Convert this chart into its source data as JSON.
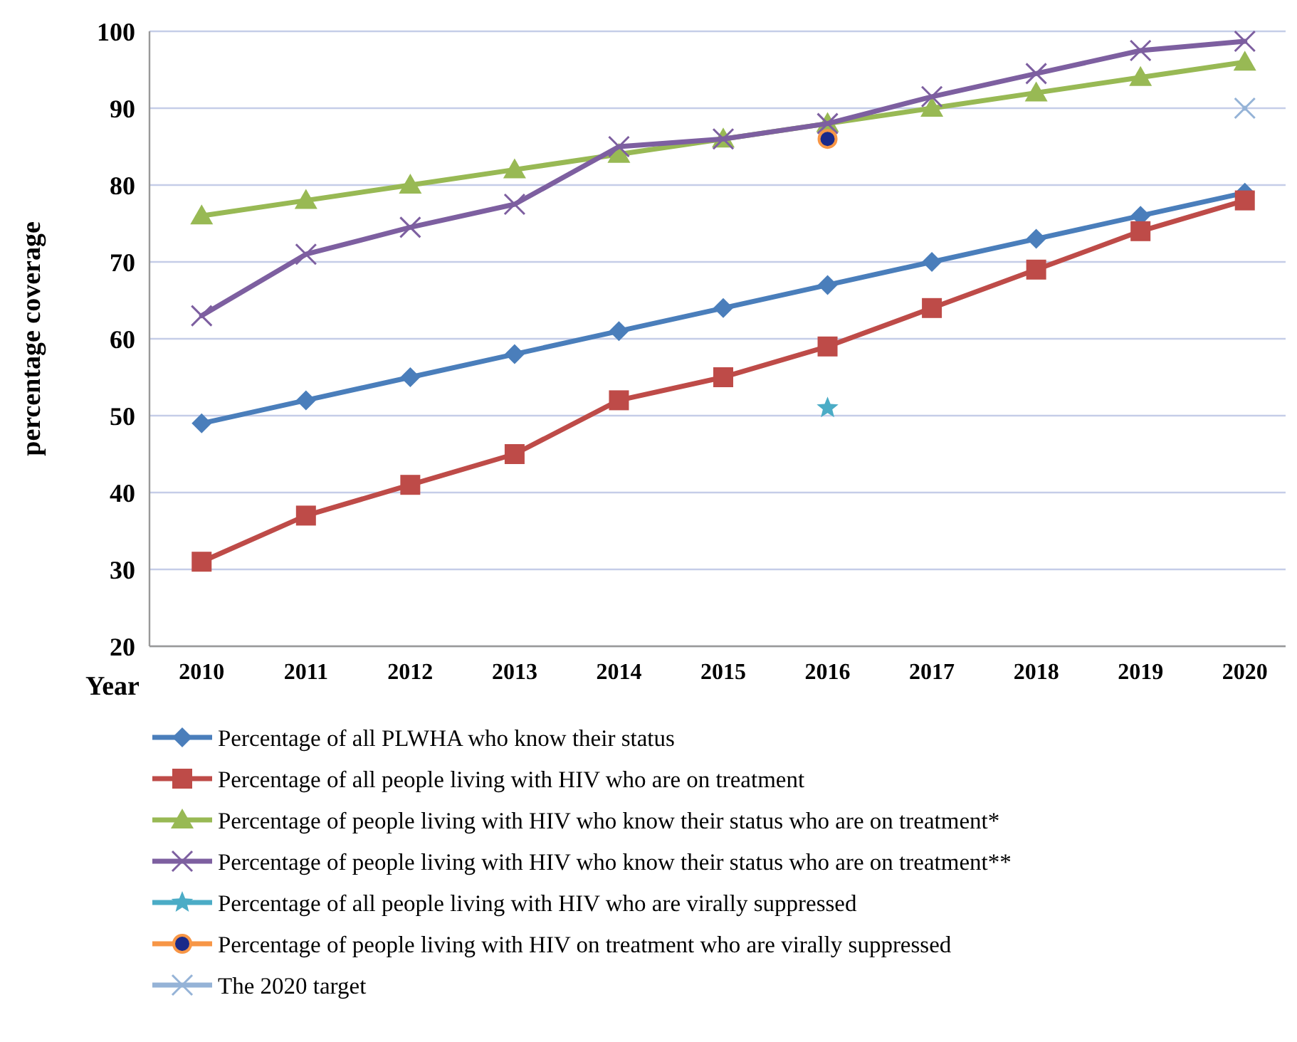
{
  "chart_data": {
    "type": "line",
    "xlabel": "Year",
    "ylabel": "percentage coverage",
    "categories": [
      "2010",
      "2011",
      "2012",
      "2013",
      "2014",
      "2015",
      "2016",
      "2017",
      "2018",
      "2019",
      "2020"
    ],
    "ylim": [
      20,
      100
    ],
    "yticks": [
      20,
      30,
      40,
      50,
      60,
      70,
      80,
      90,
      100
    ],
    "grid": "y",
    "legend": "bottom",
    "series": [
      {
        "name": "Percentage of all PLWHA who know their status",
        "color": "#4a7ebb",
        "marker": "diamond",
        "values": [
          49,
          52,
          55,
          58,
          61,
          64,
          67,
          70,
          73,
          76,
          79
        ]
      },
      {
        "name": "Percentage of all people living with HIV who are on treatment",
        "color": "#be4b48",
        "marker": "square",
        "values": [
          31,
          37,
          41,
          45,
          52,
          55,
          59,
          64,
          69,
          74,
          78
        ]
      },
      {
        "name": "Percentage of people living with HIV who know their status who are on treatment*",
        "color": "#98b954",
        "marker": "triangle",
        "values": [
          76,
          78,
          80,
          82,
          84,
          86,
          88,
          90,
          92,
          94,
          96
        ]
      },
      {
        "name": "Percentage of people living with HIV who know their status who are on treatment**",
        "color": "#7d5fa0",
        "marker": "cross",
        "values": [
          63,
          71,
          74.5,
          77.5,
          85,
          86,
          88,
          91.5,
          94.5,
          97.5,
          98.7
        ]
      },
      {
        "name": "Percentage of all people living with HIV who are virally suppressed",
        "color": "#4bacc6",
        "marker": "star",
        "values": [
          null,
          null,
          null,
          null,
          null,
          null,
          51,
          null,
          null,
          null,
          null
        ]
      },
      {
        "name": "Percentage of people living with HIV on treatment who are virally suppressed",
        "color": "#f79646",
        "marker": "circle",
        "values": [
          null,
          null,
          null,
          null,
          null,
          null,
          86,
          null,
          null,
          null,
          null
        ]
      },
      {
        "name": "The 2020 target",
        "color": "#95b3d7",
        "marker": "cross",
        "values": [
          null,
          null,
          null,
          null,
          null,
          null,
          null,
          null,
          null,
          null,
          90
        ]
      }
    ]
  }
}
